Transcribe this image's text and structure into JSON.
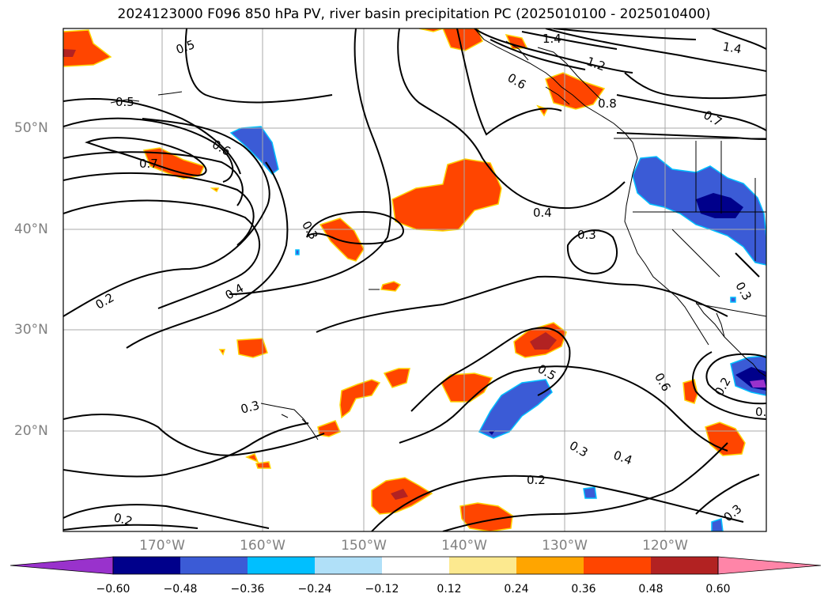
{
  "title": "2024123000 F096 850 hPa PV, river basin precipitation PC (2025010100 - 2025010400)",
  "latitude_labels": [
    "50°N",
    "40°N",
    "30°N",
    "20°N"
  ],
  "longitude_labels": [
    "170°W",
    "160°W",
    "150°W",
    "140°W",
    "130°W",
    "120°W"
  ],
  "contour_labels": [
    "0.5",
    "0.5",
    "0.7",
    "0.6",
    "0.3",
    "0.2",
    "0.4",
    "1.4",
    "1.2",
    "1.4",
    "0.6",
    "0.8",
    "0.7",
    "0.4",
    "0.3",
    "0.5",
    "0.3",
    "0.4",
    "0.6",
    "0.2",
    "0.3",
    "0.2",
    "0.2",
    "0.3",
    "0.3",
    "0.3"
  ],
  "colorbar": {
    "tick_labels": [
      "−0.60",
      "−0.48",
      "−0.36",
      "−0.24",
      "−0.12",
      "0.12",
      "0.24",
      "0.36",
      "0.48",
      "0.60"
    ],
    "colors": [
      "#9932cc",
      "#00008b",
      "#3b5bd6",
      "#00bfff",
      "#b0e0f8",
      "#ffffff",
      "#fce98f",
      "#ffa500",
      "#ff4500",
      "#b22222",
      "#ff85a8"
    ],
    "extend": "both"
  },
  "colors": {
    "grid": "#a9a9a9",
    "contour": "#000000",
    "coast": "#000000",
    "axis_label": "#808080"
  }
}
